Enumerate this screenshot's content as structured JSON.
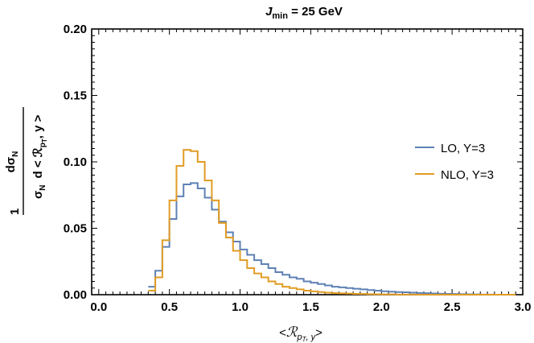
{
  "chart_data": {
    "type": "line",
    "step": true,
    "title": {
      "main": "J",
      "sub": "min",
      "rest": " = 25 GeV"
    },
    "xlabel": {
      "open": "<",
      "script": "ℛ",
      "sub1": "p",
      "sub2": "T",
      "comma": ", y",
      "close": ">"
    },
    "ylabel": {
      "one": "1",
      "num": "dσ",
      "num_sub": "N",
      "den": "σ",
      "den_sub": "N",
      "den2": "d < ℛ",
      "den2_sub": "p",
      "den2_subsub": "T",
      "den2_tail": ", y >"
    },
    "xlim": [
      -0.05,
      3.0
    ],
    "ylim": [
      0.0,
      0.2
    ],
    "xticks": [
      0.0,
      0.5,
      1.0,
      1.5,
      2.0,
      2.5,
      3.0
    ],
    "xtick_labels": [
      "0.0",
      "0.5",
      "1.0",
      "1.5",
      "2.0",
      "2.5",
      "3.0"
    ],
    "yticks": [
      0.0,
      0.05,
      0.1,
      0.15,
      0.2
    ],
    "ytick_labels": [
      "0.00",
      "0.05",
      "0.10",
      "0.15",
      "0.20"
    ],
    "bin_width": 0.05,
    "x_start": 0.35,
    "legend_position": "right",
    "series": [
      {
        "name": "LO, Y=3",
        "color": "#5e81b5",
        "values": [
          0.006,
          0.018,
          0.036,
          0.057,
          0.074,
          0.083,
          0.084,
          0.08,
          0.073,
          0.064,
          0.055,
          0.047,
          0.04,
          0.034,
          0.03,
          0.026,
          0.023,
          0.02,
          0.017,
          0.015,
          0.013,
          0.012,
          0.01,
          0.009,
          0.008,
          0.007,
          0.006,
          0.0055,
          0.005,
          0.0045,
          0.004,
          0.0035,
          0.003,
          0.0026,
          0.0023,
          0.002,
          0.0018,
          0.0015,
          0.0013,
          0.0011,
          0.0009,
          0.0007,
          0.0006,
          0.0005,
          0.0004,
          0.0003,
          0.0002,
          0.0001,
          0.0001,
          0.0,
          0.0,
          0.0
        ]
      },
      {
        "name": "NLO, Y=3",
        "color": "#e19c24",
        "values": [
          0.003,
          0.013,
          0.041,
          0.071,
          0.097,
          0.109,
          0.108,
          0.1,
          0.086,
          0.071,
          0.054,
          0.043,
          0.033,
          0.026,
          0.02,
          0.016,
          0.013,
          0.01,
          0.008,
          0.006,
          0.005,
          0.004,
          0.003,
          0.0025,
          0.002,
          0.0015,
          0.0012,
          0.001,
          0.0008,
          0.0006,
          0.0005,
          0.0004,
          0.0003,
          0.0002,
          0.0002,
          0.0001,
          0.0001,
          0.0001,
          0.0,
          0.0,
          0.0,
          0.0,
          0.0,
          0.0,
          0.0,
          0.0,
          0.0,
          0.0,
          0.0,
          0.0,
          0.0,
          0.0
        ]
      }
    ]
  }
}
